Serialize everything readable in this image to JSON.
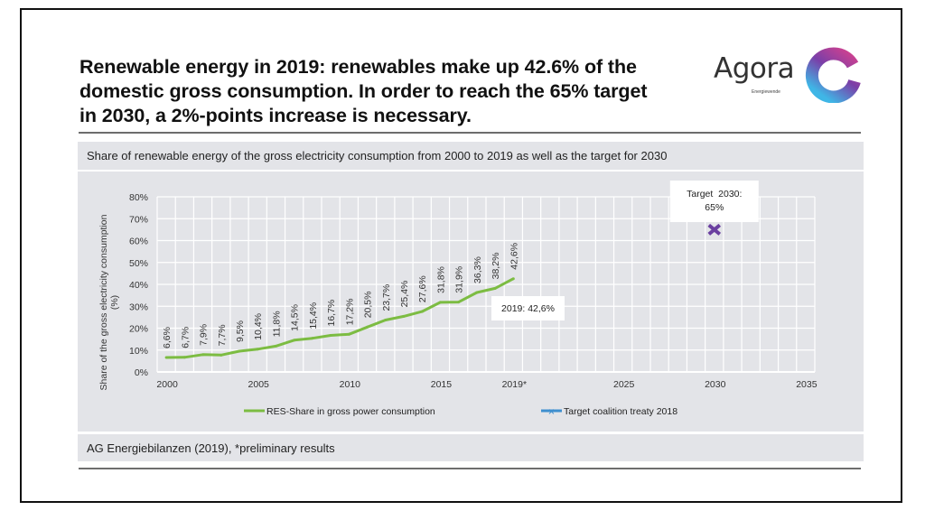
{
  "headline": {
    "line1": "Renewable energy in 2019: renewables make up 42.6% of the",
    "line2": "domestic gross consumption. In order to reach the 65% target",
    "line3": "in 2030, a 2%-points increase is necessary."
  },
  "logo": {
    "wordmark": "Agora",
    "subtitle": "Energiewende",
    "colors": {
      "ring_start": "#d1418f",
      "ring_mid": "#7a3fa8",
      "ring_end": "#3fb6e6"
    }
  },
  "subtitle": "Share of renewable energy of the gross electricity consumption from 2000 to 2019 as well as the target for 2030",
  "footer": "AG Energiebilanzen (2019), *preliminary results",
  "colors": {
    "series": "#7cbc42",
    "target_marker": "#6a3fa0",
    "legend_target_line": "#3e8fcf",
    "panel_bg": "#e3e4e8",
    "grid": "#ffffff"
  },
  "chart_data": {
    "type": "line",
    "title": "Share of renewable energy of the gross electricity consumption from 2000 to 2019 as well as the target for 2030",
    "xlabel": "",
    "ylabel": "Share of the gross electricity consumption",
    "ylabel_line2": "(%)",
    "x_range": [
      2000,
      2035
    ],
    "ylim": [
      0,
      80
    ],
    "y_ticks": [
      "0%",
      "10%",
      "20%",
      "30%",
      "40%",
      "50%",
      "60%",
      "70%",
      "80%"
    ],
    "y_tick_values": [
      0,
      10,
      20,
      30,
      40,
      50,
      60,
      70,
      80
    ],
    "x_tick_years": [
      2000,
      2005,
      2010,
      2015,
      2019,
      2025,
      2030,
      2035
    ],
    "x_tick_labels": [
      "2000",
      "2005",
      "2010",
      "2015",
      "2019*",
      "2025",
      "2030",
      "2035"
    ],
    "grid": true,
    "legend_position": "bottom",
    "series": [
      {
        "name": "RES-Share in gross power consumption",
        "x": [
          2000,
          2001,
          2002,
          2003,
          2004,
          2005,
          2006,
          2007,
          2008,
          2009,
          2010,
          2011,
          2012,
          2013,
          2014,
          2015,
          2016,
          2017,
          2018,
          2019
        ],
        "values": [
          6.6,
          6.7,
          7.9,
          7.7,
          9.5,
          10.4,
          11.8,
          14.5,
          15.4,
          16.7,
          17.2,
          20.5,
          23.7,
          25.4,
          27.6,
          31.8,
          31.9,
          36.3,
          38.2,
          42.6
        ],
        "labels": [
          "6,6%",
          "6,7%",
          "7,9%",
          "7,7%",
          "9,5%",
          "10,4%",
          "11,8%",
          "14,5%",
          "15,4%",
          "16,7%",
          "17,2%",
          "20,5%",
          "23,7%",
          "25,4%",
          "27,6%",
          "31,8%",
          "31,9%",
          "36,3%",
          "38,2%",
          "42,6%"
        ]
      },
      {
        "name": "Target coalition treaty 2018",
        "x": [
          2030
        ],
        "values": [
          65
        ]
      }
    ],
    "annotations": [
      {
        "text": "2019: 42,6%",
        "x": 2019,
        "y": 42.6
      },
      {
        "line1": "Target  2030:",
        "line2": "65%",
        "x": 2030,
        "y": 65
      }
    ]
  }
}
